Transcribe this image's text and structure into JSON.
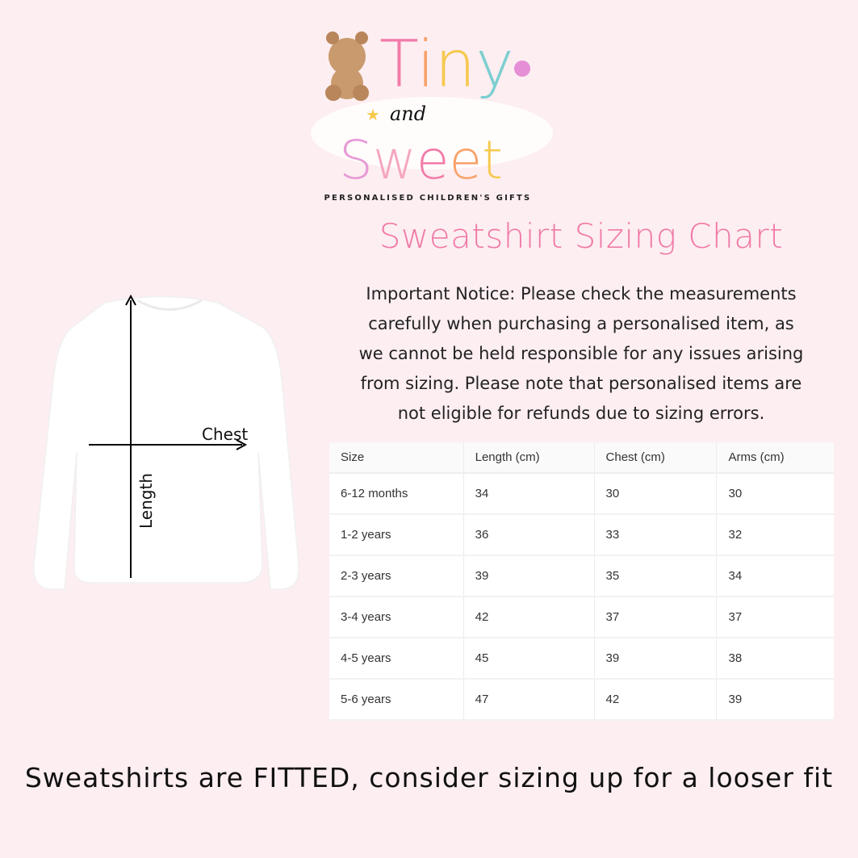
{
  "logo": {
    "line1": "Tiny",
    "line2": "and",
    "line3": "Sweet",
    "tagline": "PERSONALISED CHILDREN'S GIFTS"
  },
  "title": "Sweatshirt Sizing Chart",
  "notice": "Important Notice: Please check the measurements carefully when purchasing a personalised item, as we cannot be held responsible for any issues arising from sizing. Please note that personalised items are not eligible for refunds due to sizing errors.",
  "diagram": {
    "chest_label": "Chest",
    "length_label": "Length"
  },
  "table": {
    "headers": [
      "Size",
      "Length (cm)",
      "Chest (cm)",
      "Arms (cm)"
    ],
    "rows": [
      [
        "6-12 months",
        "34",
        "30",
        "30"
      ],
      [
        "1-2 years",
        "36",
        "33",
        "32"
      ],
      [
        "2-3 years",
        "39",
        "35",
        "34"
      ],
      [
        "3-4 years",
        "42",
        "37",
        "37"
      ],
      [
        "4-5 years",
        "45",
        "39",
        "38"
      ],
      [
        "5-6 years",
        "47",
        "42",
        "39"
      ]
    ]
  },
  "footer": "Sweatshirts are FITTED, consider sizing up for a looser fit"
}
